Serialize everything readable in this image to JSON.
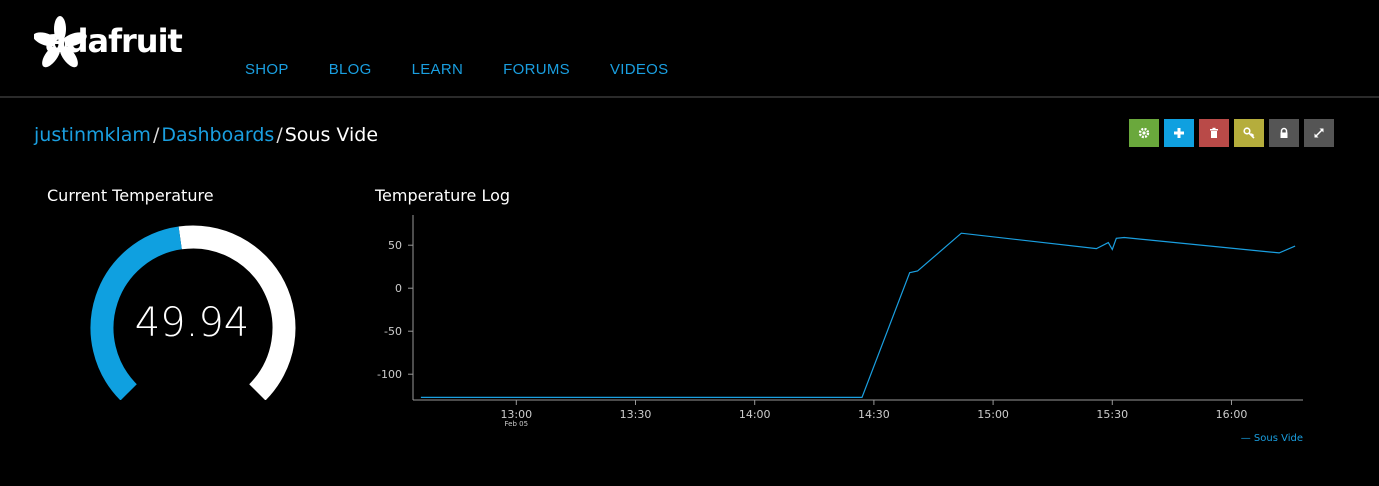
{
  "header": {
    "logo_text": "adafruit",
    "nav": [
      "SHOP",
      "BLOG",
      "LEARN",
      "FORUMS",
      "VIDEOS"
    ]
  },
  "breadcrumb": {
    "user": "justinmklam",
    "section": "Dashboards",
    "current": "Sous Vide",
    "separator": "/"
  },
  "toolbar": {
    "buttons": [
      {
        "icon": "gear-icon",
        "color": "#6aa83c"
      },
      {
        "icon": "plus-icon",
        "color": "#0fa0e0"
      },
      {
        "icon": "trash-icon",
        "color": "#b94a48"
      },
      {
        "icon": "key-icon",
        "color": "#b5ad3c"
      },
      {
        "icon": "lock-icon",
        "color": "#555555"
      },
      {
        "icon": "expand-icon",
        "color": "#555555"
      }
    ]
  },
  "gauge": {
    "title": "Current Temperature",
    "value": "49.94",
    "fraction": 0.47,
    "fill_color": "#0fa0e0",
    "track_color": "#ffffff"
  },
  "chart_data": {
    "type": "line",
    "title": "Temperature Log",
    "y_ticks": [
      50,
      0,
      -50,
      -100
    ],
    "ylim": [
      -130,
      70
    ],
    "x_ticks": [
      "13:00",
      "13:30",
      "14:00",
      "14:30",
      "15:00",
      "15:30",
      "16:00"
    ],
    "x_tick_sublabel": {
      "13:00": "Feb 05"
    },
    "xlim": [
      "12:34",
      "16:18"
    ],
    "series": [
      {
        "name": "Sous Vide",
        "color": "#1a9fe0",
        "points": [
          [
            "12:36",
            -127
          ],
          [
            "14:27",
            -127
          ],
          [
            "14:39",
            18
          ],
          [
            "14:41",
            20
          ],
          [
            "14:52",
            64
          ],
          [
            "15:26",
            46
          ],
          [
            "15:29",
            53
          ],
          [
            "15:30",
            45
          ],
          [
            "15:31",
            58
          ],
          [
            "15:33",
            59
          ],
          [
            "16:12",
            41
          ],
          [
            "16:16",
            49
          ]
        ]
      }
    ],
    "legend": "— Sous Vide",
    "legend_position": "bottom-right",
    "grid": false
  }
}
